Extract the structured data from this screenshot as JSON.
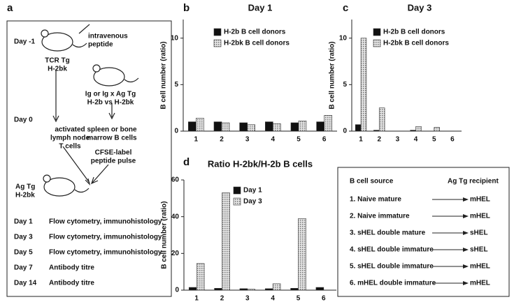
{
  "panel_labels": [
    "a",
    "b",
    "c",
    "d"
  ],
  "protocol": {
    "days": [
      "Day -1",
      "Day 0"
    ],
    "notes": [
      "intravenous",
      "peptide",
      "TCR Tg",
      "H-2bk",
      "Ig or Ig x Ag Tg",
      "H-2b vs H-2bk",
      "activated",
      "lymph node",
      "T cells",
      "spleen or bone",
      "marrow B cells",
      "CFSE-label",
      "peptide pulse",
      "Ag Tg",
      "H-2bk"
    ],
    "timeline": [
      [
        "Day 1",
        "Flow cytometry, immunohistology"
      ],
      [
        "Day 3",
        "Flow cytometry, immunohistology"
      ],
      [
        "Day 5",
        "Flow cytometry, immunohistology"
      ],
      [
        "Day 7",
        "Antibody titre"
      ],
      [
        "Day 14",
        "Antibody titre"
      ]
    ]
  },
  "recipients": {
    "header": [
      "B cell source",
      "Ag Tg recipient"
    ],
    "rows": [
      [
        "1. Naive mature",
        "mHEL"
      ],
      [
        "2. Naive immature",
        "mHEL"
      ],
      [
        "3. sHEL double mature",
        "sHEL"
      ],
      [
        "4. sHEL double immature",
        "sHEL"
      ],
      [
        "5. sHEL double immature",
        "mHEL"
      ],
      [
        "6. mHEL double immature",
        "mHEL"
      ]
    ]
  },
  "chart_data": [
    {
      "type": "bar",
      "title": "Day 1",
      "ylabel": "B cell number (ratio)",
      "categories": [
        "1",
        "2",
        "3",
        "4",
        "5",
        "6"
      ],
      "series": [
        {
          "name": "H-2b B cell donors",
          "color": "#111111",
          "values": [
            1.0,
            1.0,
            0.9,
            1.0,
            0.9,
            1.0
          ]
        },
        {
          "name": "H-2bk B cell donors",
          "color": "#b8b8b8",
          "values": [
            1.4,
            0.9,
            0.7,
            0.8,
            1.1,
            1.7
          ]
        }
      ],
      "ylim": [
        0,
        12
      ],
      "yticks": [
        0,
        5,
        10
      ],
      "legend": "upper right"
    },
    {
      "type": "bar",
      "title": "Day 3",
      "ylabel": "B cell number (ratio)",
      "categories": [
        "1",
        "2",
        "3",
        "4",
        "5",
        "6"
      ],
      "series": [
        {
          "name": "H-2b B cell donors",
          "color": "#111111",
          "values": [
            0.7,
            0.1,
            0,
            0.1,
            0,
            0
          ]
        },
        {
          "name": "H-2bk B cell donors",
          "color": "#b8b8b8",
          "values": [
            10,
            2.5,
            0,
            0.5,
            0.4,
            0
          ]
        }
      ],
      "ylim": [
        0,
        12
      ],
      "yticks": [
        0,
        5,
        10
      ],
      "legend": "upper right"
    },
    {
      "type": "bar",
      "title": "Ratio H-2bk/H-2b B cells",
      "ylabel": "B cell number (ratio)",
      "categories": [
        "1",
        "2",
        "3",
        "4",
        "5",
        "6"
      ],
      "series": [
        {
          "name": "Day 1",
          "color": "#111111",
          "values": [
            1.5,
            1.0,
            0.8,
            0.8,
            1.0,
            1.5
          ]
        },
        {
          "name": "Day 3",
          "color": "#b8b8b8",
          "values": [
            14.5,
            53,
            0.5,
            3.5,
            39,
            0
          ]
        }
      ],
      "ylim": [
        0,
        60
      ],
      "yticks": [
        0,
        20,
        40,
        60
      ],
      "legend": "upper right"
    }
  ]
}
